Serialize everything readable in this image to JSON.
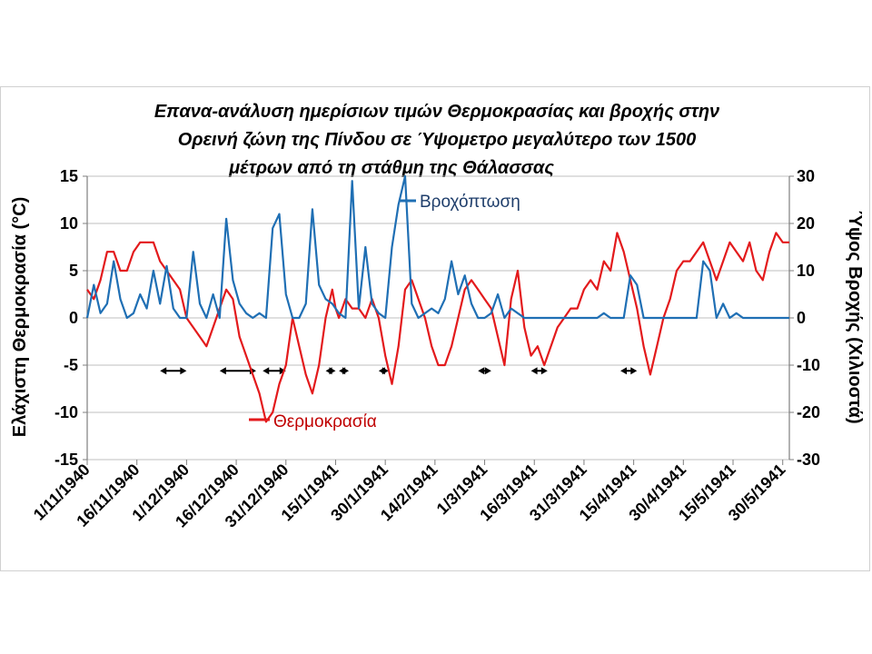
{
  "chart_data": {
    "type": "line",
    "title": [
      "Επανα-ανάλυση ημερίσιων τιμών Θερμοκρασίας και βροχής στην",
      "Ορεινή ζώνη της Πίνδου σε Ύψομετρο μεγαλύτερο των 1500",
      "μέτρων από τη στάθμη της Θάλασσας"
    ],
    "ylabel_left": "Ελάχιστη Θερμοκρασία  (°C)",
    "ylabel_right": "Ύψος Βροχής (Χιλιοστά)",
    "y_left_range": [
      -15,
      15
    ],
    "y_left_ticks": [
      "-15",
      "-10",
      "-5",
      "0",
      "5",
      "10",
      "15"
    ],
    "y_right_range": [
      -30,
      30
    ],
    "y_right_ticks": [
      "-30",
      "-20",
      "-10",
      "0",
      "10",
      "20",
      "30"
    ],
    "x_range": [
      0,
      212
    ],
    "x_tick_labels": [
      "1/11/1940",
      "16/11/1940",
      "1/12/1940",
      "16/12/1940",
      "31/12/1940",
      "15/1/1941",
      "30/1/1941",
      "14/2/1941",
      "1/3/1941",
      "16/3/1941",
      "31/3/1941",
      "15/4/1941",
      "30/4/1941",
      "15/5/1941",
      "30/5/1941"
    ],
    "x_tick_days": [
      0,
      15,
      30,
      45,
      60,
      75,
      90,
      105,
      120,
      135,
      150,
      165,
      180,
      195,
      210
    ],
    "grid": "horizontal",
    "series": [
      {
        "name": "Θερμοκρασία",
        "axis": "left",
        "color": "#e31a1c",
        "x": [
          0,
          2,
          4,
          6,
          8,
          10,
          12,
          14,
          16,
          18,
          20,
          22,
          24,
          26,
          28,
          30,
          32,
          34,
          36,
          38,
          40,
          42,
          44,
          46,
          48,
          50,
          52,
          54,
          56,
          58,
          60,
          62,
          64,
          66,
          68,
          70,
          72,
          74,
          75,
          76,
          78,
          80,
          82,
          84,
          86,
          88,
          90,
          92,
          94,
          96,
          98,
          100,
          102,
          104,
          106,
          108,
          110,
          112,
          114,
          116,
          118,
          120,
          122,
          124,
          126,
          128,
          130,
          132,
          134,
          136,
          138,
          140,
          142,
          144,
          146,
          148,
          150,
          152,
          154,
          156,
          158,
          160,
          162,
          164,
          166,
          168,
          170,
          172,
          174,
          176,
          178,
          180,
          182,
          184,
          186,
          188,
          190,
          192,
          194,
          196,
          198,
          200,
          202,
          204,
          206,
          208,
          210,
          212
        ],
        "y": [
          3,
          2,
          4,
          7,
          7,
          5,
          5,
          7,
          8,
          8,
          8,
          6,
          5,
          4,
          3,
          0,
          -1,
          -2,
          -3,
          -1,
          1,
          3,
          2,
          -2,
          -4,
          -6,
          -8,
          -11,
          -10,
          -7,
          -5,
          0,
          -3,
          -6,
          -8,
          -5,
          0,
          3,
          1,
          0,
          2,
          1,
          1,
          0,
          2,
          0,
          -4,
          -7,
          -3,
          3,
          4,
          2,
          0,
          -3,
          -5,
          -5,
          -3,
          0,
          3,
          4,
          3,
          2,
          1,
          -2,
          -5,
          2,
          5,
          -1,
          -4,
          -3,
          -5,
          -3,
          -1,
          0,
          1,
          1,
          3,
          4,
          3,
          6,
          5,
          9,
          7,
          4,
          1,
          -3,
          -6,
          -3,
          0,
          2,
          5,
          6,
          6,
          7,
          8,
          6,
          4,
          6,
          8,
          7,
          6,
          8,
          5,
          4,
          7,
          9,
          8,
          8
        ]
      },
      {
        "name": "Βροχόπτωση",
        "axis": "right",
        "color": "#1f6fb4",
        "x": [
          0,
          2,
          4,
          6,
          8,
          10,
          12,
          14,
          16,
          18,
          20,
          22,
          24,
          26,
          28,
          30,
          32,
          34,
          36,
          38,
          40,
          42,
          44,
          46,
          48,
          50,
          52,
          54,
          56,
          58,
          60,
          62,
          64,
          66,
          68,
          70,
          72,
          74,
          75,
          76,
          78,
          80,
          82,
          84,
          86,
          88,
          90,
          92,
          94,
          96,
          98,
          100,
          102,
          104,
          106,
          108,
          110,
          112,
          114,
          116,
          118,
          120,
          122,
          124,
          126,
          128,
          130,
          132,
          134,
          136,
          138,
          140,
          142,
          144,
          146,
          148,
          150,
          152,
          154,
          156,
          158,
          160,
          162,
          164,
          166,
          168,
          170,
          172,
          174,
          176,
          178,
          180,
          182,
          184,
          186,
          188,
          190,
          192,
          194,
          196,
          198,
          200,
          202,
          204,
          206,
          208,
          210,
          212
        ],
        "y": [
          0,
          7,
          1,
          3,
          12,
          4,
          0,
          1,
          5,
          2,
          10,
          3,
          11,
          2,
          0,
          0,
          14,
          3,
          0,
          5,
          0,
          21,
          8,
          3,
          1,
          0,
          1,
          0,
          19,
          22,
          5,
          0,
          0,
          3,
          23,
          7,
          4,
          3,
          2,
          1,
          0,
          29,
          2,
          15,
          3,
          1,
          0,
          15,
          24,
          30,
          3,
          0,
          1,
          2,
          1,
          4,
          12,
          5,
          9,
          3,
          0,
          0,
          1,
          5,
          0,
          2,
          1,
          0,
          0,
          0,
          0,
          0,
          0,
          0,
          0,
          0,
          0,
          0,
          0,
          1,
          0,
          0,
          0,
          9,
          7,
          0,
          0,
          0,
          0,
          0,
          0,
          0,
          0,
          0,
          12,
          10,
          0,
          3,
          0,
          1,
          0,
          0,
          0,
          0,
          0,
          0,
          0,
          0
        ]
      }
    ],
    "annotations": {
      "dry_spells": [
        [
          22,
          30
        ],
        [
          40,
          51
        ],
        [
          53,
          60
        ],
        [
          72,
          75
        ],
        [
          76,
          79
        ],
        [
          88,
          91
        ],
        [
          118,
          122
        ],
        [
          134,
          139
        ],
        [
          161,
          166
        ]
      ]
    }
  }
}
